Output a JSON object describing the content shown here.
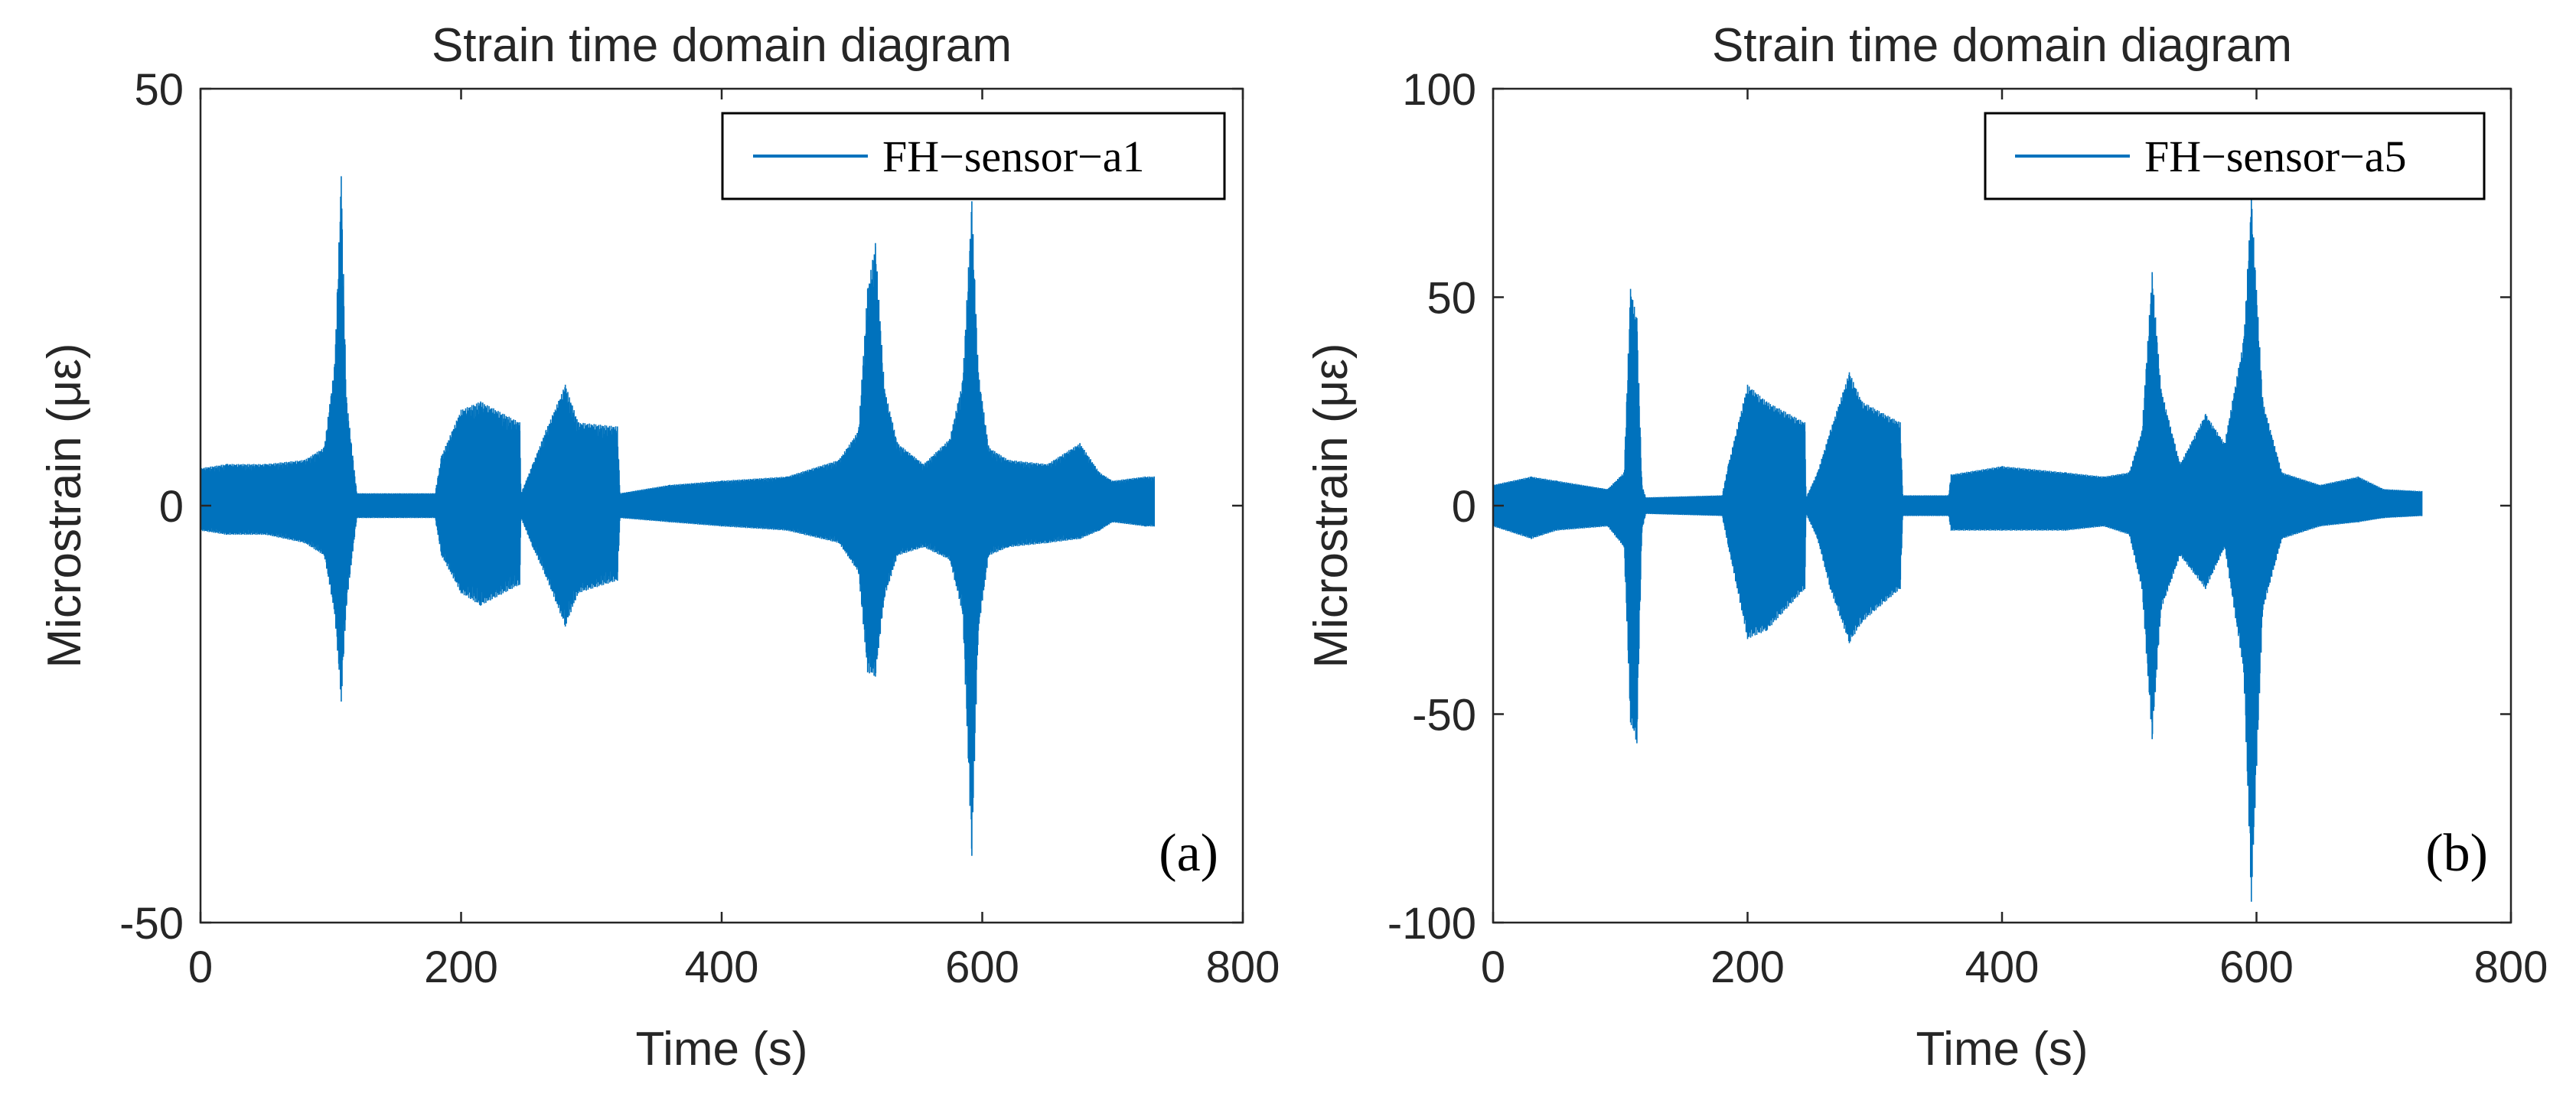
{
  "chart_data": [
    {
      "type": "line",
      "title": "Strain time domain diagram",
      "xlabel": "Time (s)",
      "ylabel": "Microstrain (με)",
      "xlim": [
        0,
        800
      ],
      "ylim": [
        -50,
        50
      ],
      "xticks": [
        0,
        200,
        400,
        600,
        800
      ],
      "yticks": [
        -50,
        0,
        50
      ],
      "xtick_labels": [
        "0",
        "200",
        "400",
        "600",
        "800"
      ],
      "ytick_labels": [
        "-50",
        "0",
        "50"
      ],
      "legend": {
        "position": "top-right",
        "entries": [
          "FH−sensor−a1"
        ]
      },
      "panel_label": "(a)",
      "color": "#0072BD",
      "grid": false,
      "series": [
        {
          "name": "FH−sensor−a1",
          "envelope": {
            "x": [
              0,
              20,
              50,
              80,
              95,
              103,
              108,
              112,
              120,
              180,
              185,
              200,
              215,
              245,
              246,
              255,
              265,
              280,
              290,
              320,
              322,
              360,
              400,
              450,
              490,
              505,
              512,
              518,
              525,
              535,
              555,
              575,
              585,
              592,
              597,
              605,
              620,
              650,
              675,
              690,
              700,
              725,
              732
            ],
            "max": [
              4.5,
              5.0,
              5.0,
              5.5,
              7.0,
              17.0,
              39.5,
              13.0,
              1.5,
              1.5,
              6.0,
              11.5,
              12.5,
              10.0,
              1.5,
              5.0,
              9.0,
              14.5,
              10.0,
              9.5,
              1.5,
              2.5,
              3.0,
              3.5,
              5.5,
              9.0,
              26.0,
              31.5,
              14.0,
              7.5,
              5.0,
              8.0,
              15.0,
              36.5,
              16.0,
              7.0,
              5.5,
              5.0,
              7.5,
              4.0,
              3.0,
              3.5,
              3.5
            ],
            "min": [
              -3.0,
              -3.5,
              -3.5,
              -4.5,
              -6.0,
              -13.0,
              -23.5,
              -12.0,
              -1.5,
              -1.5,
              -6.0,
              -10.5,
              -12.0,
              -9.5,
              -1.5,
              -5.0,
              -8.5,
              -14.5,
              -10.5,
              -9.0,
              -1.5,
              -2.0,
              -2.5,
              -3.0,
              -4.5,
              -8.0,
              -20.0,
              -20.5,
              -11.0,
              -6.0,
              -5.0,
              -6.5,
              -13.0,
              -42.0,
              -15.0,
              -6.0,
              -5.0,
              -4.5,
              -4.0,
              -3.0,
              -2.0,
              -2.5,
              -2.5
            ]
          }
        }
      ]
    },
    {
      "type": "line",
      "title": "Strain time domain diagram",
      "xlabel": "Time (s)",
      "ylabel": "Microstrain (με)",
      "xlim": [
        0,
        800
      ],
      "ylim": [
        -100,
        100
      ],
      "xticks": [
        0,
        200,
        400,
        600,
        800
      ],
      "yticks": [
        -100,
        -50,
        0,
        50,
        100
      ],
      "xtick_labels": [
        "0",
        "200",
        "400",
        "600",
        "800"
      ],
      "ytick_labels": [
        "-100",
        "-50",
        "0",
        "50",
        "100"
      ],
      "legend": {
        "position": "top-right",
        "entries": [
          "FH−sensor−a5"
        ]
      },
      "panel_label": "(b)",
      "color": "#0072BD",
      "grid": false,
      "series": [
        {
          "name": "FH−sensor−a5",
          "envelope": {
            "x": [
              0,
              30,
              50,
              90,
              103,
              108,
              113,
              117,
              120,
              180,
              185,
              200,
              215,
              245,
              246,
              255,
              265,
              280,
              290,
              320,
              322,
              358,
              360,
              400,
              450,
              480,
              500,
              510,
              518,
              525,
              540,
              560,
              575,
              590,
              596,
              605,
              620,
              650,
              680,
              700,
              730
            ],
            "max": [
              5.0,
              7.0,
              6.0,
              4.0,
              8.0,
              52.0,
              45.0,
              5.0,
              2.0,
              2.5,
              10.0,
              29.0,
              25.0,
              20.0,
              2.0,
              8.0,
              18.0,
              32.0,
              25.0,
              20.0,
              2.5,
              2.5,
              7.5,
              9.5,
              8.0,
              7.0,
              8.0,
              18.0,
              56.0,
              28.0,
              10.0,
              22.0,
              15.0,
              40.0,
              74.0,
              25.0,
              8.0,
              5.0,
              7.0,
              4.0,
              3.5
            ],
            "min": [
              -5.0,
              -8.0,
              -6.0,
              -5.0,
              -10.0,
              -52.0,
              -57.0,
              -6.0,
              -2.0,
              -2.5,
              -10.0,
              -32.0,
              -30.0,
              -20.0,
              -2.0,
              -8.0,
              -20.0,
              -33.0,
              -28.0,
              -20.0,
              -2.5,
              -2.5,
              -6.0,
              -6.0,
              -6.0,
              -5.0,
              -7.0,
              -20.0,
              -56.0,
              -25.0,
              -12.0,
              -20.0,
              -10.0,
              -40.0,
              -95.0,
              -25.0,
              -8.0,
              -5.0,
              -4.0,
              -3.0,
              -2.5
            ]
          }
        }
      ]
    }
  ]
}
